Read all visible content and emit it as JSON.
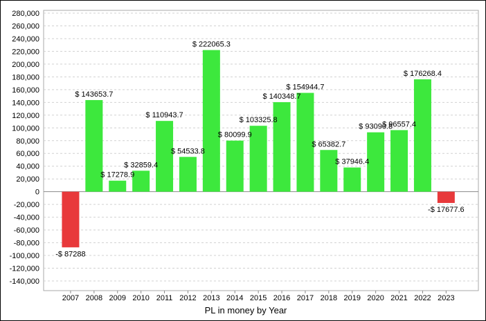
{
  "chart_data": {
    "type": "bar",
    "title": "",
    "xlabel": "PL in money by Year",
    "ylabel": "",
    "ylim": [
      -140000,
      280000
    ],
    "yticks": [
      280000,
      260000,
      240000,
      220000,
      200000,
      180000,
      160000,
      140000,
      120000,
      100000,
      80000,
      60000,
      40000,
      20000,
      0,
      -20000,
      -40000,
      -60000,
      -80000,
      -100000,
      -120000,
      -140000
    ],
    "ytick_labels": [
      "280,000",
      "260,000",
      "240,000",
      "220,000",
      "200,000",
      "180,000",
      "160,000",
      "140,000",
      "120,000",
      "100,000",
      "80,000",
      "60,000",
      "40,000",
      "20,000",
      "0",
      "-20,000",
      "-40,000",
      "-60,000",
      "-80,000",
      "-100,000",
      "-120,000",
      "-140,000"
    ],
    "grid": true,
    "legend": "none",
    "categories": [
      "2007",
      "2008",
      "2009",
      "2010",
      "2011",
      "2012",
      "2013",
      "2014",
      "2015",
      "2016",
      "2017",
      "2018",
      "2019",
      "2020",
      "2021",
      "2022",
      "2023"
    ],
    "values": [
      -87288,
      143653.7,
      17278.9,
      32859.4,
      110943.7,
      54533.8,
      222065.3,
      80099.9,
      103325.8,
      140348.7,
      154944.7,
      65382.7,
      37946.4,
      93090.8,
      96557.4,
      176268.4,
      -17677.6
    ],
    "data_labels": [
      "-$ 87288",
      "$ 143653.7",
      "$ 17278.9",
      "$ 32859.4",
      "$ 110943.7",
      "$ 54533.8",
      "$ 222065.3",
      "$ 80099.9",
      "$ 103325.8",
      "$ 140348.7",
      "$ 154944.7",
      "$ 65382.7",
      "$ 37946.4",
      "$ 93090.8",
      "$ 96557.4",
      "$ 176268.4",
      "-$ 17677.6"
    ],
    "colors": {
      "positive": "#3de83d",
      "negative": "#e8393b",
      "grid": "#d0d0d0",
      "axis": "#888888"
    }
  }
}
